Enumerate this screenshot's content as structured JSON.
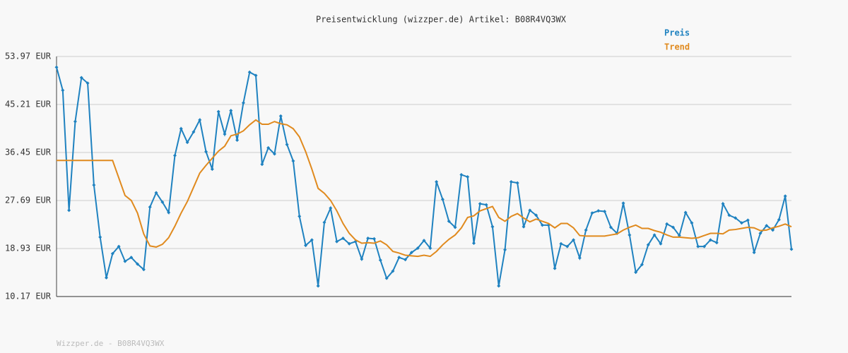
{
  "chart_data": {
    "type": "line",
    "title": "Preisentwicklung (wizzper.de) Artikel: B08R4VQ3WX",
    "footer": "Wizzper.de - B08R4VQ3WX",
    "ylim": [
      10.17,
      53.97
    ],
    "yticks": [
      {
        "value": 10.17,
        "label": "10.17 EUR"
      },
      {
        "value": 18.93,
        "label": "18.93 EUR"
      },
      {
        "value": 27.69,
        "label": "27.69 EUR"
      },
      {
        "value": 36.45,
        "label": "36.45 EUR"
      },
      {
        "value": 45.21,
        "label": "45.21 EUR"
      },
      {
        "value": 53.97,
        "label": "53.97 EUR"
      }
    ],
    "grid": true,
    "legend": "top-right",
    "series": [
      {
        "name": "Preis",
        "color": "#1f82c0",
        "markers": true,
        "values": [
          52.0,
          47.8,
          25.9,
          42.1,
          50.1,
          49.1,
          30.5,
          21.0,
          13.6,
          18.0,
          19.3,
          16.6,
          17.3,
          16.1,
          15.1,
          26.5,
          29.1,
          27.4,
          25.5,
          35.9,
          40.8,
          38.3,
          40.2,
          42.4,
          36.6,
          33.4,
          43.9,
          39.8,
          44.1,
          38.7,
          45.5,
          51.1,
          50.5,
          34.3,
          37.3,
          36.2,
          43.1,
          37.9,
          34.9,
          24.8,
          19.5,
          20.5,
          12.1,
          23.7,
          26.3,
          20.2,
          20.8,
          19.8,
          20.2,
          17.0,
          20.8,
          20.7,
          16.8,
          13.5,
          14.8,
          17.3,
          16.9,
          18.2,
          19.0,
          20.4,
          19.0,
          31.1,
          27.9,
          23.9,
          22.8,
          32.4,
          32.0,
          19.9,
          27.1,
          26.9,
          22.9,
          12.1,
          18.7,
          31.1,
          30.9,
          22.9,
          25.9,
          25.0,
          23.2,
          23.2,
          15.3,
          19.8,
          19.3,
          20.5,
          17.2,
          22.3,
          25.4,
          25.8,
          25.7,
          22.8,
          21.7,
          27.2,
          21.4,
          14.6,
          16.0,
          19.6,
          21.4,
          19.8,
          23.4,
          22.8,
          21.3,
          25.5,
          23.6,
          19.3,
          19.3,
          20.5,
          20.0,
          27.1,
          25.0,
          24.5,
          23.6,
          24.1,
          18.2,
          21.7,
          23.1,
          22.3,
          24.2,
          28.5,
          18.8
        ]
      },
      {
        "name": "Trend",
        "color": "#e08a1e",
        "markers": false,
        "values": [
          35,
          35,
          35,
          35,
          35,
          35,
          35,
          35,
          35,
          35,
          31.8,
          28.6,
          27.7,
          25.4,
          21.6,
          19.4,
          19.2,
          19.7,
          20.9,
          23.0,
          25.4,
          27.5,
          30.1,
          32.7,
          34.1,
          35.4,
          36.7,
          37.6,
          39.5,
          39.8,
          40.4,
          41.5,
          42.4,
          41.6,
          41.6,
          42.1,
          41.7,
          41.5,
          40.8,
          39.3,
          36.6,
          33.4,
          29.9,
          29.0,
          27.7,
          25.8,
          23.5,
          21.7,
          20.5,
          19.9,
          20.0,
          19.9,
          20.3,
          19.6,
          18.4,
          18.1,
          17.7,
          17.6,
          17.5,
          17.7,
          17.5,
          18.4,
          19.6,
          20.6,
          21.4,
          22.7,
          24.6,
          24.9,
          25.8,
          26.2,
          26.6,
          24.6,
          23.9,
          24.8,
          25.3,
          24.5,
          23.8,
          24.3,
          23.9,
          23.5,
          22.7,
          23.5,
          23.5,
          22.7,
          21.3,
          21.2,
          21.2,
          21.2,
          21.2,
          21.4,
          21.6,
          22.3,
          22.8,
          23.2,
          22.6,
          22.6,
          22.2,
          21.9,
          21.4,
          21.0,
          21.0,
          20.9,
          20.8,
          20.9,
          21.3,
          21.7,
          21.7,
          21.6,
          22.3,
          22.4,
          22.6,
          22.8,
          22.7,
          22.2,
          22.3,
          22.7,
          23.0,
          23.4,
          22.9
        ]
      }
    ]
  }
}
